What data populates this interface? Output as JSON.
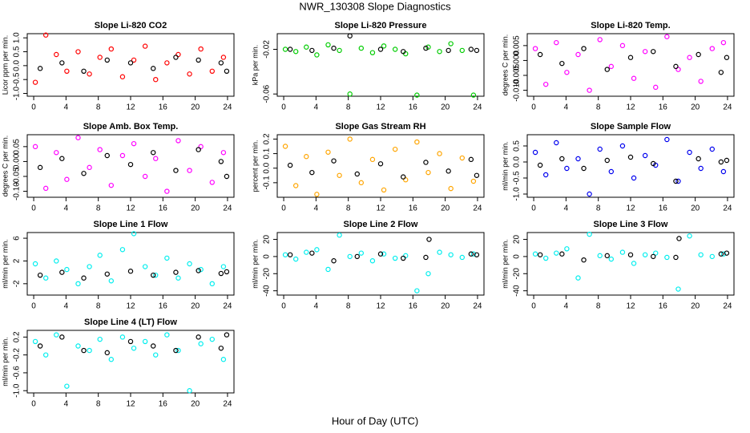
{
  "title": "NWR_130308  Slope Diagnostics",
  "xlabel": "Hour of Day (UTC)",
  "chart_data": [
    {
      "type": "scatter",
      "title": "Slope Li-820 CO2",
      "ylabel": "Licor ppm per min.",
      "xlim": [
        -0.8,
        24.8
      ],
      "xticks": [
        0,
        4,
        8,
        12,
        16,
        20,
        24
      ],
      "ylim": [
        -1.1,
        1.15
      ],
      "yticks": [
        {
          "value": -1,
          "label": "-1.0"
        },
        {
          "value": -0.5,
          "label": "-0.5"
        },
        {
          "value": 0,
          "label": "0.0"
        },
        {
          "value": 0.5,
          "label": "0.5"
        },
        {
          "value": 1,
          "label": "1.0"
        }
      ],
      "series": [
        {
          "color": "#ff0000",
          "x": [
            0.2,
            1.5,
            2.8,
            4.1,
            5.5,
            6.9,
            8.2,
            9.6,
            11,
            12.4,
            13.8,
            15.1,
            16.5,
            17.9,
            19.3,
            20.7,
            22.1,
            23.5
          ],
          "values": [
            -0.6,
            1.1,
            0.4,
            -0.2,
            0.5,
            -0.3,
            0.3,
            0.6,
            -0.4,
            0.2,
            0.7,
            -0.5,
            0.1,
            0.4,
            -0.3,
            0.6,
            -0.2,
            0.3
          ]
        },
        {
          "color": "#000000",
          "x": [
            0.8,
            3.5,
            6.2,
            9.1,
            12,
            14.8,
            17.6,
            20.4,
            23.2,
            23.9
          ],
          "values": [
            -0.1,
            0.1,
            -0.2,
            0.2,
            0.1,
            -0.1,
            0.3,
            0.2,
            0.1,
            -0.2
          ]
        }
      ]
    },
    {
      "type": "scatter",
      "title": "Slope Li-820 Pressure",
      "ylabel": "kPa per min.",
      "xlim": [
        -0.8,
        24.8
      ],
      "xticks": [
        0,
        4,
        8,
        12,
        16,
        20,
        24
      ],
      "ylim": [
        -0.062,
        -0.006
      ],
      "yticks": [
        -0.06,
        -0.02
      ],
      "series": [
        {
          "color": "#00cc00",
          "x": [
            0.2,
            1.5,
            2.8,
            4.1,
            5.5,
            6.9,
            8.2,
            9.6,
            11,
            12.4,
            13.8,
            15.1,
            16.5,
            17.9,
            19.3,
            20.7,
            22.1,
            23.5
          ],
          "values": [
            -0.02,
            -0.022,
            -0.018,
            -0.025,
            -0.016,
            -0.021,
            -0.06,
            -0.019,
            -0.023,
            -0.017,
            -0.02,
            -0.024,
            -0.061,
            -0.018,
            -0.022,
            -0.015,
            -0.021,
            -0.061
          ]
        },
        {
          "color": "#000000",
          "x": [
            0.8,
            3.5,
            6.2,
            8.2,
            12,
            14.8,
            17.6,
            20.4,
            23.2,
            23.9
          ],
          "values": [
            -0.02,
            -0.021,
            -0.019,
            -0.008,
            -0.02,
            -0.022,
            -0.019,
            -0.021,
            -0.02,
            -0.021
          ]
        }
      ]
    },
    {
      "type": "scatter",
      "title": "Slope Li-820 Temp.",
      "ylabel": "degrees C per min.",
      "xlim": [
        -0.8,
        24.8
      ],
      "xticks": [
        0,
        4,
        8,
        12,
        16,
        20,
        24
      ],
      "ylim": [
        -0.012,
        0.009
      ],
      "yticks": [
        {
          "value": -0.01,
          "label": "-0.010"
        },
        {
          "value": -0.005,
          "label": "-0.005"
        },
        {
          "value": 0,
          "label": "0.000"
        },
        {
          "value": 0.005,
          "label": "0.005"
        }
      ],
      "series": [
        {
          "color": "#ff00ff",
          "x": [
            0.2,
            1.5,
            2.8,
            4.1,
            5.5,
            6.9,
            8.2,
            9.6,
            11,
            12.4,
            13.8,
            15.1,
            16.5,
            17.9,
            19.3,
            20.7,
            22.1,
            23.5
          ],
          "values": [
            0.004,
            -0.008,
            0.006,
            -0.004,
            0.002,
            -0.01,
            0.007,
            -0.002,
            0.005,
            -0.006,
            0.003,
            -0.009,
            0.008,
            -0.003,
            0.001,
            -0.007,
            0.004,
            0.006
          ]
        },
        {
          "color": "#000000",
          "x": [
            0.8,
            3.5,
            6.2,
            9.1,
            12,
            14.8,
            17.6,
            20.4,
            23.2,
            23.9
          ],
          "values": [
            0.002,
            -0.001,
            0.004,
            -0.003,
            0.001,
            0.003,
            -0.002,
            0.002,
            -0.004,
            0.001
          ]
        }
      ]
    },
    {
      "type": "scatter",
      "title": "Slope Amb. Box Temp.",
      "ylabel": "degrees C per min.",
      "xlim": [
        -0.8,
        24.8
      ],
      "xticks": [
        0,
        4,
        8,
        12,
        16,
        20,
        24
      ],
      "ylim": [
        -0.12,
        0.09
      ],
      "yticks": [
        {
          "value": -0.1,
          "label": "-0.10"
        },
        {
          "value": -0.05,
          "label": "-0.05"
        },
        {
          "value": 0,
          "label": "0.00"
        },
        {
          "value": 0.05,
          "label": "0.05"
        }
      ],
      "series": [
        {
          "color": "#ff00ff",
          "x": [
            0.2,
            1.5,
            2.8,
            4.1,
            5.5,
            6.9,
            8.2,
            9.6,
            11,
            12.4,
            13.8,
            15.1,
            16.5,
            17.9,
            19.3,
            20.7,
            22.1,
            23.5
          ],
          "values": [
            0.05,
            -0.09,
            0.03,
            -0.06,
            0.08,
            -0.02,
            0.04,
            -0.08,
            0.02,
            0.06,
            -0.05,
            0.01,
            -0.1,
            0.07,
            -0.03,
            0.05,
            -0.07,
            0.03
          ]
        },
        {
          "color": "#000000",
          "x": [
            0.8,
            3.5,
            6.2,
            9.1,
            12,
            14.8,
            17.6,
            20.4,
            23.2,
            23.9
          ],
          "values": [
            -0.02,
            0.01,
            -0.04,
            0.02,
            -0.01,
            0.03,
            -0.03,
            0.04,
            0,
            -0.05
          ]
        }
      ]
    },
    {
      "type": "scatter",
      "title": "Slope Gas Stream RH",
      "ylabel": "percent per min.",
      "xlim": [
        -0.8,
        24.8
      ],
      "xticks": [
        0,
        4,
        8,
        12,
        16,
        20,
        24
      ],
      "ylim": [
        -0.2,
        0.23
      ],
      "yticks": [
        -0.1,
        {
          "value": 0,
          "label": "0.0"
        },
        0.1,
        0.2
      ],
      "series": [
        {
          "color": "#ffa500",
          "x": [
            0.2,
            1.5,
            2.8,
            4.1,
            5.5,
            6.9,
            8.2,
            9.6,
            11,
            12.4,
            13.8,
            15.1,
            16.5,
            17.9,
            19.3,
            20.7,
            22.1,
            23.5
          ],
          "values": [
            0.15,
            -0.12,
            0.08,
            -0.18,
            0.11,
            -0.05,
            0.2,
            -0.1,
            0.06,
            -0.15,
            0.13,
            -0.08,
            0.18,
            -0.03,
            0.1,
            -0.14,
            0.07,
            -0.09
          ]
        },
        {
          "color": "#000000",
          "x": [
            0.8,
            3.5,
            6.2,
            9.1,
            12,
            14.8,
            17.6,
            20.4,
            23.2,
            23.9
          ],
          "values": [
            0.02,
            -0.03,
            0.05,
            -0.04,
            0.03,
            -0.06,
            0.04,
            -0.02,
            0.06,
            -0.05
          ]
        }
      ]
    },
    {
      "type": "scatter",
      "title": "Slope Sample Flow",
      "ylabel": "ml/min per min.",
      "xlim": [
        -0.8,
        24.8
      ],
      "xticks": [
        0,
        4,
        8,
        12,
        16,
        20,
        24
      ],
      "ylim": [
        -1.1,
        0.85
      ],
      "yticks": [
        {
          "value": -1,
          "label": "-1.0"
        },
        {
          "value": -0.5,
          "label": "-0.5"
        },
        {
          "value": 0,
          "label": "0.0"
        },
        0.5
      ],
      "series": [
        {
          "color": "#0000ee",
          "x": [
            0.2,
            1.5,
            2.8,
            4.1,
            5.5,
            6.9,
            8.2,
            9.6,
            11,
            12.4,
            13.8,
            15.1,
            16.5,
            17.9,
            19.3,
            20.7,
            22.1,
            23.5
          ],
          "values": [
            0.3,
            -0.4,
            0.6,
            -0.2,
            0.1,
            -1,
            0.4,
            -0.3,
            0.5,
            -0.5,
            0.2,
            -0.1,
            0.7,
            -0.6,
            0.3,
            -0.2,
            0.4,
            -0.3
          ]
        },
        {
          "color": "#000000",
          "x": [
            0.8,
            3.5,
            6.2,
            9.1,
            12,
            14.8,
            17.6,
            20.4,
            23.2,
            23.9
          ],
          "values": [
            -0.1,
            0.1,
            -0.2,
            0.05,
            0.15,
            -0.05,
            -0.6,
            0.1,
            0,
            0.05
          ]
        }
      ]
    },
    {
      "type": "scatter",
      "title": "Slope Line 1 Flow",
      "ylabel": "ml/min per min.",
      "xlim": [
        -0.8,
        24.8
      ],
      "xticks": [
        0,
        4,
        8,
        12,
        16,
        20,
        24
      ],
      "ylim": [
        -4,
        7
      ],
      "yticks": [
        -2,
        2,
        6
      ],
      "series": [
        {
          "color": "#00eeee",
          "x": [
            0.2,
            1.5,
            2.8,
            4.1,
            5.5,
            6.9,
            8.2,
            9.6,
            11,
            12.4,
            13.8,
            15.1,
            16.5,
            17.9,
            19.3,
            20.7,
            22.1,
            23.5
          ],
          "values": [
            1.5,
            -1,
            2,
            0.5,
            -2,
            1,
            3,
            -1.5,
            4,
            6.8,
            1,
            -0.5,
            2.5,
            -1,
            1.5,
            0.5,
            -2,
            1
          ]
        },
        {
          "color": "#000000",
          "x": [
            0.8,
            3.5,
            6.2,
            9.1,
            12,
            14.8,
            17.6,
            20.4,
            23.2,
            23.9
          ],
          "values": [
            -0.5,
            0,
            -1,
            -0.3,
            0.2,
            -0.5,
            0,
            0.3,
            -0.2,
            0.1
          ]
        }
      ]
    },
    {
      "type": "scatter",
      "title": "Slope Line 2 Flow",
      "ylabel": "ml/min per min.",
      "xlim": [
        -0.8,
        24.8
      ],
      "xticks": [
        0,
        4,
        8,
        12,
        16,
        20,
        24
      ],
      "ylim": [
        -45,
        28
      ],
      "yticks": [
        -40,
        -20,
        0,
        20
      ],
      "series": [
        {
          "color": "#00eeee",
          "x": [
            0.2,
            1.5,
            2.8,
            4.1,
            5.5,
            6.9,
            8.2,
            9.6,
            11,
            12.4,
            13.8,
            15.1,
            16.5,
            17.9,
            19.3,
            20.7,
            22.1,
            23.5
          ],
          "values": [
            2,
            -3,
            5,
            8,
            -15,
            25,
            0,
            4,
            -5,
            3,
            -2,
            1,
            -40,
            -20,
            5,
            2,
            -1,
            3
          ]
        },
        {
          "color": "#000000",
          "x": [
            0.8,
            3.5,
            6.2,
            9.1,
            12,
            14.8,
            17.6,
            18,
            23.2,
            23.9
          ],
          "values": [
            2,
            4,
            -5,
            0,
            3,
            -2,
            -1,
            20,
            3,
            2
          ]
        }
      ]
    },
    {
      "type": "scatter",
      "title": "Slope Line 3 Flow",
      "ylabel": "ml/min per min.",
      "xlim": [
        -0.8,
        24.8
      ],
      "xticks": [
        0,
        4,
        8,
        12,
        16,
        20,
        24
      ],
      "ylim": [
        -45,
        28
      ],
      "yticks": [
        -40,
        -20,
        0,
        20
      ],
      "series": [
        {
          "color": "#00eeee",
          "x": [
            0.2,
            1.5,
            2.8,
            4.1,
            5.5,
            6.9,
            8.2,
            9.6,
            11,
            12.4,
            13.8,
            15.1,
            16.5,
            17.9,
            19.3,
            20.7,
            22.1,
            23.5
          ],
          "values": [
            3,
            -2,
            4,
            9,
            -25,
            26,
            1,
            -3,
            5,
            -8,
            2,
            4,
            -1,
            -38,
            24,
            2,
            0,
            3
          ]
        },
        {
          "color": "#000000",
          "x": [
            0.8,
            3.5,
            6.2,
            9.1,
            12,
            14.8,
            17.6,
            18,
            23.2,
            23.9
          ],
          "values": [
            2,
            3,
            -4,
            1,
            2,
            0,
            -1,
            21,
            3,
            4
          ]
        }
      ]
    },
    {
      "type": "scatter",
      "title": "Slope Line 4 (LT) Flow",
      "ylabel": "ml/min per min.",
      "xlim": [
        -0.8,
        24.8
      ],
      "xticks": [
        0,
        4,
        8,
        12,
        16,
        20,
        24
      ],
      "ylim": [
        -1.05,
        0.35
      ],
      "yticks": [
        {
          "value": -1,
          "label": "-1.0"
        },
        -0.6,
        -0.2,
        0.2
      ],
      "series": [
        {
          "color": "#00eeee",
          "x": [
            0.2,
            1.5,
            2.8,
            4.1,
            5.5,
            6.9,
            8.2,
            9.6,
            11,
            12.4,
            13.8,
            15.1,
            16.5,
            17.9,
            19.3,
            20.7,
            22.1,
            23.5
          ],
          "values": [
            0.1,
            -0.2,
            0.25,
            -0.9,
            0,
            -0.1,
            0.15,
            -0.3,
            0.2,
            -0.05,
            0.1,
            -0.2,
            0.25,
            -0.1,
            -1,
            0.05,
            0.15,
            -0.3
          ]
        },
        {
          "color": "#000000",
          "x": [
            0.8,
            3.5,
            6.2,
            9.1,
            12,
            14.8,
            17.6,
            20.4,
            23.2,
            23.9
          ],
          "values": [
            0,
            0.2,
            -0.1,
            -0.15,
            0.1,
            0,
            -0.1,
            0.2,
            -0.05,
            0.25
          ]
        }
      ]
    }
  ]
}
